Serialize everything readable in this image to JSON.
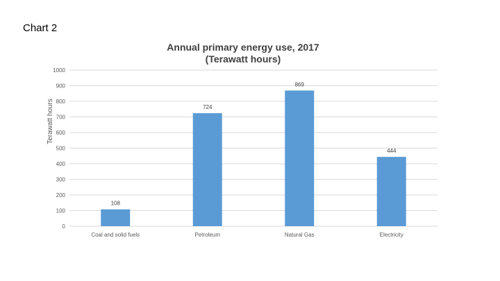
{
  "slide": {
    "label": "Chart 2"
  },
  "chart_data": {
    "type": "bar",
    "title": [
      "Annual  primary energy use, 2017",
      "(Terawatt hours)"
    ],
    "ylabel": "Terawatt hours",
    "xlabel": "",
    "categories": [
      "Coal and solid fuels",
      "Petroleum",
      "Natural Gas",
      "Electricity"
    ],
    "values": [
      108,
      724,
      869,
      444
    ],
    "data_labels": [
      "108",
      "724",
      "869",
      "444"
    ],
    "ylim": [
      0,
      1000
    ],
    "yticks": [
      0,
      100,
      200,
      300,
      400,
      500,
      600,
      700,
      800,
      900,
      1000
    ],
    "grid": true,
    "legend": "none",
    "bar_color": "#5B9BD5",
    "grid_color": "#D9D9D9"
  }
}
